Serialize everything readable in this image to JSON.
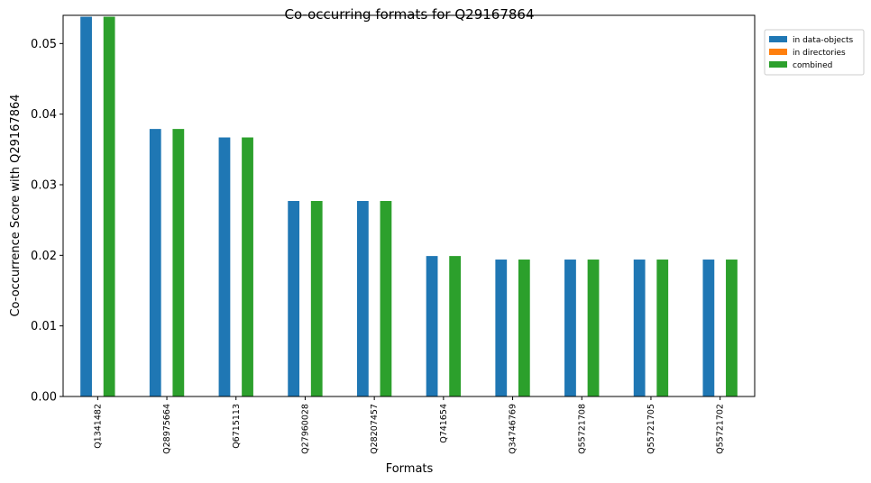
{
  "chart_data": {
    "type": "bar",
    "title": "Co-occurring formats for Q29167864",
    "xlabel": "Formats",
    "ylabel": "Co-occurrence Score with Q29167864",
    "ylim": [
      0,
      0.054
    ],
    "yticks": [
      0.0,
      0.01,
      0.02,
      0.03,
      0.04,
      0.05
    ],
    "ytick_labels": [
      "0.00",
      "0.01",
      "0.02",
      "0.03",
      "0.04",
      "0.05"
    ],
    "categories": [
      "Q1341482",
      "Q28975664",
      "Q6715113",
      "Q27960028",
      "Q28207457",
      "Q741654",
      "Q34746769",
      "Q55721708",
      "Q55721705",
      "Q55721702"
    ],
    "series": [
      {
        "name": "in data-objects",
        "color": "#1f77b4",
        "values": [
          0.0538,
          0.0379,
          0.0367,
          0.0277,
          0.0277,
          0.0199,
          0.0194,
          0.0194,
          0.0194,
          0.0194
        ]
      },
      {
        "name": "in directories",
        "color": "#ff7f0e",
        "values": [
          0,
          0,
          0,
          0,
          0,
          0,
          0,
          0,
          0,
          0
        ]
      },
      {
        "name": "combined",
        "color": "#2ca02c",
        "values": [
          0.0538,
          0.0379,
          0.0367,
          0.0277,
          0.0277,
          0.0199,
          0.0194,
          0.0194,
          0.0194,
          0.0194
        ]
      }
    ],
    "legend_position": "outside-top-right",
    "grid": false
  }
}
